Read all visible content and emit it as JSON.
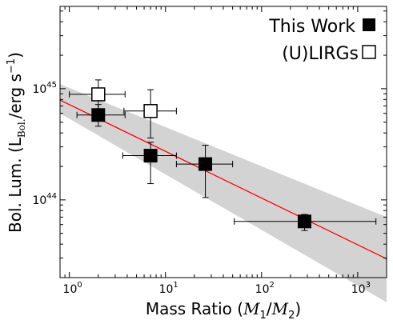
{
  "chart_data": {
    "type": "scatter",
    "title": "",
    "xlabel": "Mass Ratio ($M_1/M_2$)",
    "ylabel": "Bol. Lum. (L_Bol./erg s^-1)",
    "xscale": "log",
    "yscale": "log",
    "xlim": [
      0.8,
      2000
    ],
    "ylim": [
      2e+43,
      5.5e+45
    ],
    "x_ticks": [
      1,
      10,
      100,
      1000
    ],
    "x_tick_labels": [
      "10^0",
      "10^1",
      "10^2",
      "10^3"
    ],
    "y_ticks": [
      1e+44,
      1e+45
    ],
    "y_tick_labels": [
      "10^44",
      "10^45"
    ],
    "grid": false,
    "legend_position": "top-right",
    "series": [
      {
        "name": "This Work",
        "marker": "filled-square",
        "color": "#000000",
        "points": [
          {
            "x": 2.0,
            "y": 5.8e+44,
            "xerr": [
              1.2,
              3.8
            ],
            "yerr": [
              4.6e+44,
              7.2e+44
            ]
          },
          {
            "x": 7.0,
            "y": 2.5e+44,
            "xerr": [
              3.6,
              13.0
            ],
            "yerr": [
              1.4e+44,
              3.3e+44
            ]
          },
          {
            "x": 26.0,
            "y": 2.1e+44,
            "xerr": [
              13.0,
              50.0
            ],
            "yerr": [
              1.05e+44,
              3.1e+44
            ]
          },
          {
            "x": 280.0,
            "y": 6.4e+43,
            "xerr": [
              52.0,
              1550.0
            ],
            "yerr": [
              5.3e+43,
              7.4e+43
            ]
          }
        ]
      },
      {
        "name": "(U)LIRGs",
        "marker": "open-square",
        "color": "#000000",
        "points": [
          {
            "x": 2.0,
            "y": 8.9e+44,
            "xerr": [
              1.0,
              3.8
            ],
            "yerr": [
              6.2e+44,
              1.2e+45
            ]
          },
          {
            "x": 7.0,
            "y": 6.3e+44,
            "xerr": [
              3.7,
              13.0
            ],
            "yerr": [
              3.6e+44,
              9.8e+44
            ]
          }
        ]
      }
    ],
    "fit": {
      "color": "#ff0000",
      "line": [
        {
          "x": 0.8,
          "y": 7.9e+44
        },
        {
          "x": 2000,
          "y": 2.95e+43
        }
      ],
      "band_color": "#d3d3d3",
      "band_upper": [
        {
          "x": 0.8,
          "y": 1.1e+45
        },
        {
          "x": 2000,
          "y": 7e+43
        }
      ],
      "band_lower": [
        {
          "x": 0.8,
          "y": 6e+44
        },
        {
          "x": 2000,
          "y": 1.2e+43
        }
      ]
    }
  }
}
